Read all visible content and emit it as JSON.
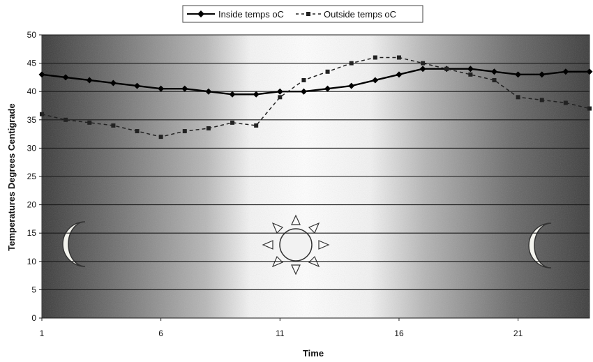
{
  "chart_data": {
    "type": "line",
    "title": "",
    "xlabel": "Time",
    "ylabel": "Temperatures Degrees Centigrade",
    "x": [
      1,
      2,
      3,
      4,
      5,
      6,
      7,
      8,
      9,
      10,
      11,
      12,
      13,
      14,
      15,
      16,
      17,
      18,
      19,
      20,
      21,
      22,
      23,
      24
    ],
    "x_ticks": [
      1,
      6,
      11,
      16,
      21
    ],
    "y_ticks": [
      0,
      5,
      10,
      15,
      20,
      25,
      30,
      35,
      40,
      45,
      50
    ],
    "xlim": [
      1,
      24
    ],
    "ylim": [
      0,
      50
    ],
    "grid": true,
    "legend_position": "top-center",
    "series": [
      {
        "name": "Inside temps oC",
        "color": "#000000",
        "line_style": "solid",
        "marker": "diamond",
        "values": [
          43,
          42.5,
          42,
          41.5,
          41,
          40.5,
          40.5,
          40,
          39.5,
          39.5,
          40,
          40,
          40.5,
          41,
          42,
          43,
          44,
          44,
          44,
          43.5,
          43,
          43,
          43.5,
          43.5
        ]
      },
      {
        "name": "Outside temps oC",
        "color": "#222222",
        "line_style": "dashed",
        "marker": "square",
        "values": [
          36,
          35,
          34.5,
          34,
          33,
          32,
          33,
          33.5,
          34.5,
          34,
          39,
          42,
          43.5,
          45,
          46,
          46,
          45,
          44,
          43,
          42,
          39,
          38.5,
          38,
          37
        ]
      }
    ],
    "background": "night-day-night gradient with moon, sun, moon illustrations"
  }
}
